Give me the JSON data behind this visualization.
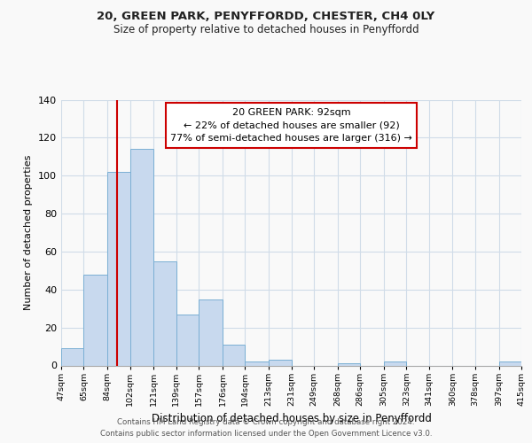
{
  "title": "20, GREEN PARK, PENYFFORDD, CHESTER, CH4 0LY",
  "subtitle": "Size of property relative to detached houses in Penyffordd",
  "xlabel": "Distribution of detached houses by size in Penyffordd",
  "ylabel": "Number of detached properties",
  "bar_edges": [
    47,
    65,
    84,
    102,
    121,
    139,
    157,
    176,
    194,
    213,
    231,
    249,
    268,
    286,
    305,
    323,
    341,
    360,
    378,
    397,
    415
  ],
  "bar_heights": [
    9,
    48,
    102,
    114,
    55,
    27,
    35,
    11,
    2,
    3,
    0,
    0,
    1,
    0,
    2,
    0,
    0,
    0,
    0,
    2
  ],
  "bar_color": "#c8d9ee",
  "bar_edge_color": "#7aafd4",
  "vline_x": 92,
  "vline_color": "#cc0000",
  "ylim": [
    0,
    140
  ],
  "annotation_line1": "20 GREEN PARK: 92sqm",
  "annotation_line2": "← 22% of detached houses are smaller (92)",
  "annotation_line3": "77% of semi-detached houses are larger (316) →",
  "annotation_box_color": "#ffffff",
  "annotation_edge_color": "#cc0000",
  "tick_labels": [
    "47sqm",
    "65sqm",
    "84sqm",
    "102sqm",
    "121sqm",
    "139sqm",
    "157sqm",
    "176sqm",
    "194sqm",
    "213sqm",
    "231sqm",
    "249sqm",
    "268sqm",
    "286sqm",
    "305sqm",
    "323sqm",
    "341sqm",
    "360sqm",
    "378sqm",
    "397sqm",
    "415sqm"
  ],
  "ytick_labels": [
    "0",
    "20",
    "40",
    "60",
    "80",
    "100",
    "120",
    "140"
  ],
  "ytick_values": [
    0,
    20,
    40,
    60,
    80,
    100,
    120,
    140
  ],
  "footer_line1": "Contains HM Land Registry data © Crown copyright and database right 2024.",
  "footer_line2": "Contains public sector information licensed under the Open Government Licence v3.0.",
  "background_color": "#f9f9f9",
  "grid_color": "#d0dce8"
}
